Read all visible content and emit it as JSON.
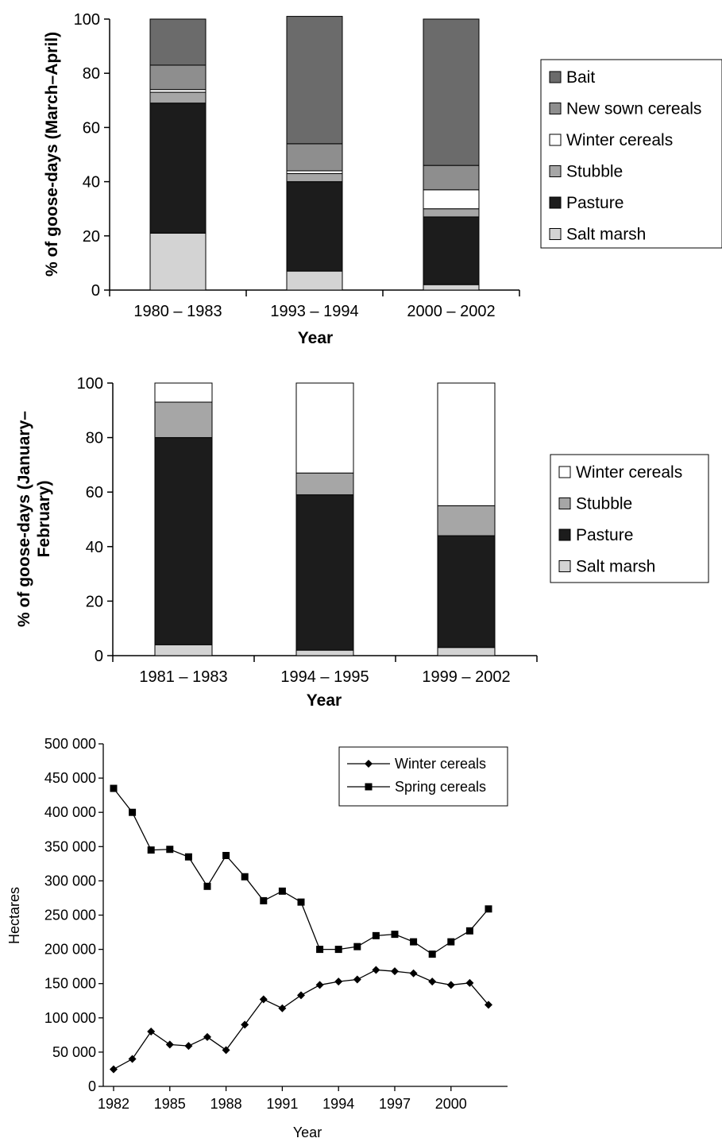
{
  "colors": {
    "Bait": "#6b6b6b",
    "New sown cereals": "#8e8e8e",
    "Winter cereals": "#ffffff",
    "Stubble": "#a6a6a6",
    "Pasture": "#1c1c1c",
    "Salt marsh": "#d3d3d3"
  },
  "chart_data": [
    {
      "type": "bar",
      "stacked": true,
      "ylabel": "% of goose-days (March–April)",
      "xlabel": "Year",
      "ylim": [
        0,
        100
      ],
      "yticks": [
        "0",
        "20",
        "40",
        "60",
        "80",
        "100"
      ],
      "categories": [
        "1980 – 1983",
        "1993 – 1994",
        "2000 – 2002"
      ],
      "series": [
        {
          "name": "Salt marsh",
          "values": [
            21,
            7,
            2
          ]
        },
        {
          "name": "Pasture",
          "values": [
            48,
            33,
            25
          ]
        },
        {
          "name": "Stubble",
          "values": [
            4,
            3,
            3
          ]
        },
        {
          "name": "Winter cereals",
          "values": [
            1,
            1,
            7
          ]
        },
        {
          "name": "New sown cereals",
          "values": [
            9,
            10,
            9
          ]
        },
        {
          "name": "Bait",
          "values": [
            17,
            47,
            54
          ]
        }
      ],
      "legend": [
        "Bait",
        "New sown cereals",
        "Winter cereals",
        "Stubble",
        "Pasture",
        "Salt marsh"
      ],
      "legend_position": "right"
    },
    {
      "type": "bar",
      "stacked": true,
      "ylabel": "% of goose-days (January–February)",
      "xlabel": "Year",
      "ylim": [
        0,
        100
      ],
      "yticks": [
        "0",
        "20",
        "40",
        "60",
        "80",
        "100"
      ],
      "categories": [
        "1981 – 1983",
        "1994 – 1995",
        "1999 – 2002"
      ],
      "series": [
        {
          "name": "Salt marsh",
          "values": [
            4,
            2,
            3
          ]
        },
        {
          "name": "Pasture",
          "values": [
            76,
            57,
            41
          ]
        },
        {
          "name": "Stubble",
          "values": [
            13,
            8,
            11
          ]
        },
        {
          "name": "Winter cereals",
          "values": [
            7,
            33,
            45
          ]
        }
      ],
      "legend": [
        "Winter cereals",
        "Stubble",
        "Pasture",
        "Salt marsh"
      ],
      "legend_position": "right"
    },
    {
      "type": "line",
      "ylabel": "Hectares",
      "xlabel": "Year",
      "ylim": [
        0,
        500000
      ],
      "xlim": [
        1982,
        2003
      ],
      "yticks": [
        "0",
        "50 000",
        "100 000",
        "150 000",
        "200 000",
        "250 000",
        "300 000",
        "350 000",
        "400 000",
        "450 000",
        "500 000"
      ],
      "xticks": [
        "1982",
        "1985",
        "1988",
        "1991",
        "1994",
        "1997",
        "2000"
      ],
      "x": [
        1982,
        1983,
        1984,
        1985,
        1986,
        1987,
        1988,
        1989,
        1990,
        1991,
        1992,
        1993,
        1994,
        1995,
        1996,
        1997,
        1998,
        1999,
        2000,
        2001,
        2002
      ],
      "series": [
        {
          "name": "Winter cereals",
          "marker": "diamond",
          "values": [
            25000,
            40000,
            80000,
            61000,
            59000,
            72000,
            53000,
            90000,
            127000,
            114000,
            133000,
            148000,
            153000,
            156000,
            170000,
            168000,
            165000,
            153000,
            148000,
            151000,
            119000
          ]
        },
        {
          "name": "Spring cereals",
          "marker": "square",
          "values": [
            435000,
            400000,
            345000,
            346000,
            335000,
            292000,
            337000,
            306000,
            271000,
            285000,
            269000,
            200000,
            200000,
            204000,
            220000,
            222000,
            211000,
            193000,
            211000,
            227000,
            259000
          ]
        }
      ],
      "legend_position": "top-right"
    }
  ]
}
